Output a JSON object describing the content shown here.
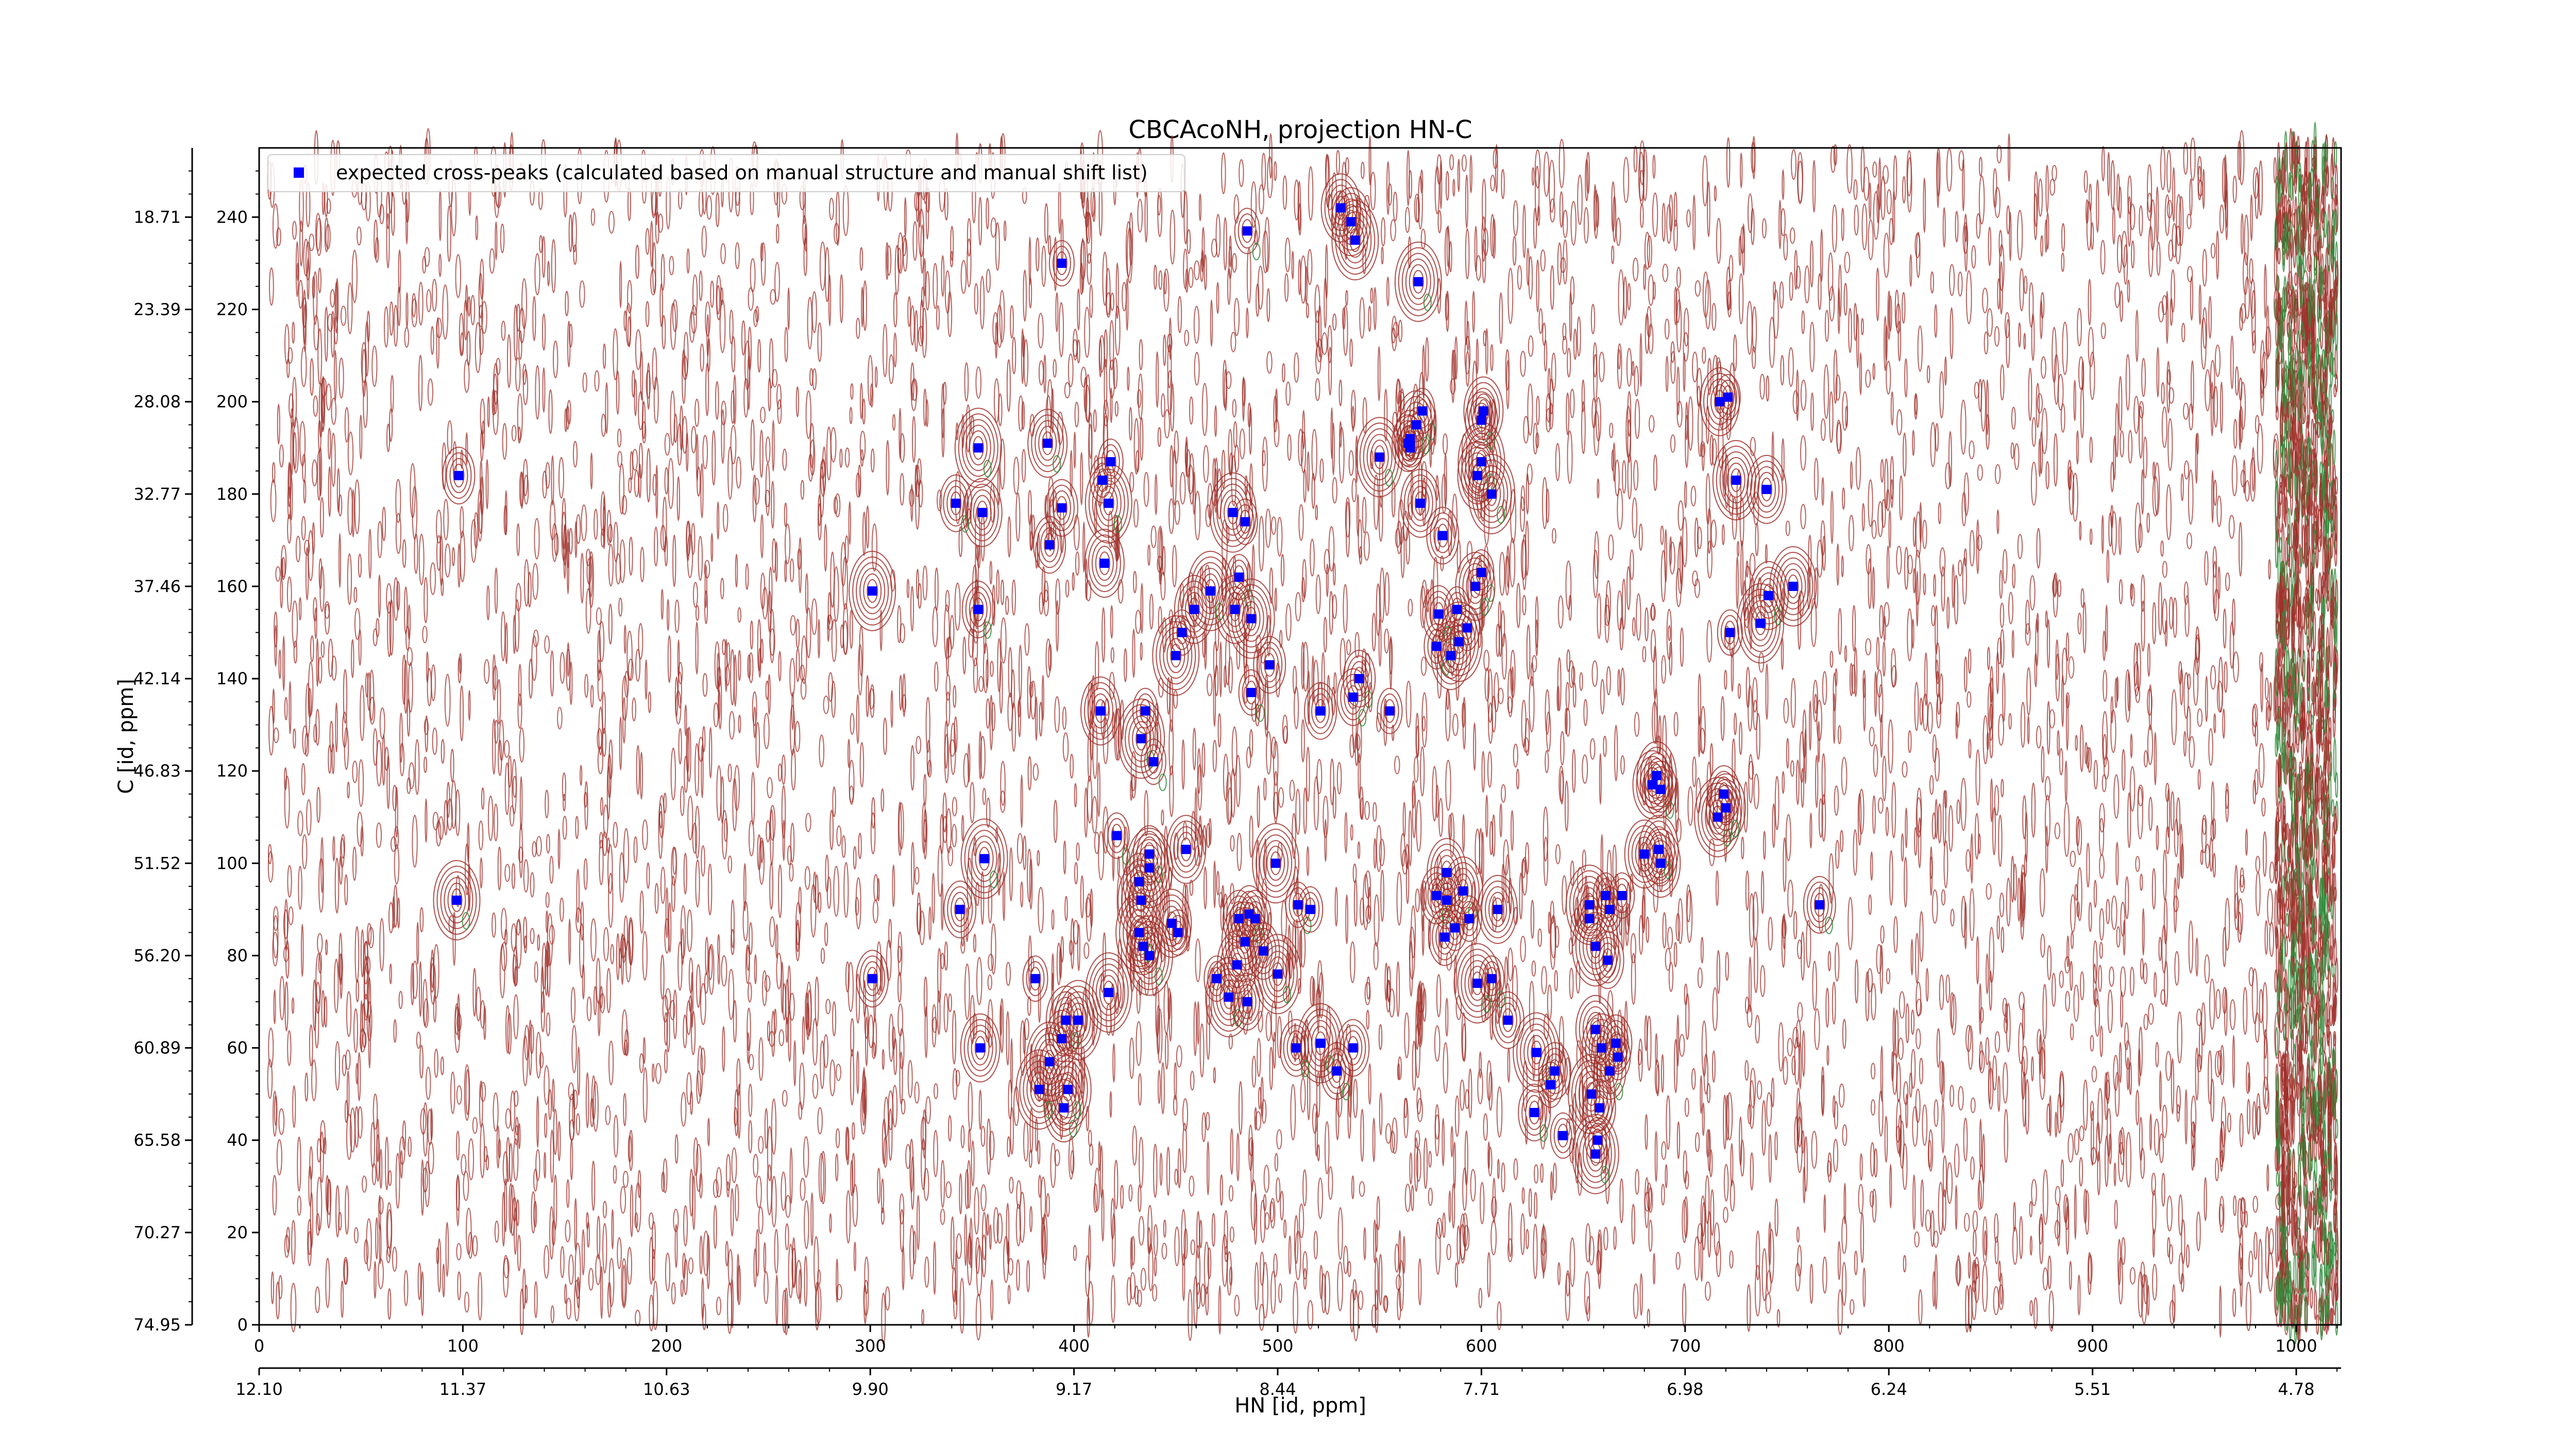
{
  "chart_data": {
    "type": "scatter",
    "title": "CBCAcoNH, projection HN-C",
    "xlabel": "HN [id, ppm]",
    "ylabel": "C [id, ppm]",
    "x_index_ticks": [
      "0",
      "100",
      "200",
      "300",
      "400",
      "500",
      "600",
      "700",
      "800",
      "900",
      "1000"
    ],
    "x_ppm_ticks": [
      "12.10",
      "11.37",
      "10.63",
      "9.90",
      "9.17",
      "8.44",
      "7.71",
      "6.98",
      "6.24",
      "5.51",
      "4.78"
    ],
    "y_index_ticks": [
      "0",
      "20",
      "40",
      "60",
      "80",
      "100",
      "120",
      "140",
      "160",
      "180",
      "200",
      "220",
      "240"
    ],
    "y_ppm_ticks": [
      "74.95",
      "70.27",
      "65.58",
      "60.89",
      "56.20",
      "51.52",
      "46.83",
      "42.14",
      "37.46",
      "32.77",
      "28.08",
      "23.39",
      "18.71"
    ],
    "xlim": [
      0,
      1022
    ],
    "ylim": [
      0,
      255
    ],
    "legend": {
      "position": "top-left",
      "label": "expected cross-peaks (calculated based on manual structure and manual shift list)"
    },
    "colors": {
      "marker": "#0000ff",
      "contour_positive": "#a0302a",
      "contour_negative": "#2e8b3a"
    },
    "series": [
      {
        "name": "expected cross-peaks (calculated based on manual structure and manual shift list)",
        "x": [
          98,
          97,
          301,
          301,
          353,
          355,
          353,
          356,
          344,
          342,
          354,
          387,
          394,
          388,
          414,
          418,
          417,
          415,
          413,
          396,
          394,
          388,
          395,
          397,
          383,
          381,
          402,
          417,
          434,
          437,
          437,
          432,
          433,
          421,
          432,
          437,
          448,
          451,
          455,
          435,
          433,
          439,
          450,
          453,
          459,
          467,
          478,
          481,
          479,
          484,
          487,
          487,
          496,
          499,
          486,
          489,
          493,
          484,
          470,
          476,
          485,
          500,
          480,
          481,
          510,
          516,
          509,
          521,
          529,
          537,
          521,
          540,
          555,
          537,
          550,
          564,
          565,
          571,
          565,
          568,
          570,
          581,
          589,
          588,
          579,
          578,
          585,
          593,
          600,
          597,
          600,
          605,
          598,
          600,
          601,
          578,
          583,
          583,
          582,
          587,
          591,
          594,
          608,
          605,
          598,
          613,
          627,
          636,
          634,
          626,
          640,
          656,
          657,
          658,
          654,
          663,
          659,
          667,
          666,
          656,
          662,
          656,
          653,
          653,
          661,
          663,
          669,
          680,
          688,
          687,
          688,
          684,
          686,
          716,
          720,
          719,
          722,
          737,
          753,
          717,
          721,
          725,
          740,
          741,
          766,
          538,
          536,
          569,
          485,
          531,
          394
        ],
        "y": [
          184,
          92,
          75,
          159,
          190,
          176,
          155,
          101,
          90,
          178,
          60,
          191,
          177,
          169,
          183,
          187,
          178,
          165,
          133,
          66,
          62,
          57,
          47,
          51,
          51,
          75,
          66,
          72,
          82,
          80,
          102,
          96,
          92,
          106,
          85,
          99,
          87,
          85,
          103,
          133,
          127,
          122,
          145,
          150,
          155,
          159,
          176,
          162,
          155,
          174,
          153,
          137,
          143,
          100,
          89,
          88,
          81,
          83,
          75,
          71,
          70,
          76,
          78,
          88,
          91,
          90,
          60,
          61,
          55,
          60,
          133,
          140,
          133,
          136,
          188,
          191,
          192,
          198,
          190,
          195,
          178,
          171,
          148,
          155,
          154,
          147,
          145,
          151,
          163,
          160,
          187,
          180,
          184,
          196,
          198,
          93,
          92,
          98,
          84,
          86,
          94,
          88,
          90,
          75,
          74,
          66,
          59,
          55,
          52,
          46,
          41,
          37,
          40,
          47,
          50,
          55,
          60,
          58,
          61,
          64,
          79,
          82,
          88,
          91,
          93,
          90,
          93,
          102,
          100,
          103,
          116,
          117,
          119,
          110,
          112,
          115,
          150,
          152,
          160,
          200,
          201,
          183,
          181,
          158,
          91,
          235,
          239,
          226,
          237,
          242,
          230
        ]
      }
    ]
  }
}
